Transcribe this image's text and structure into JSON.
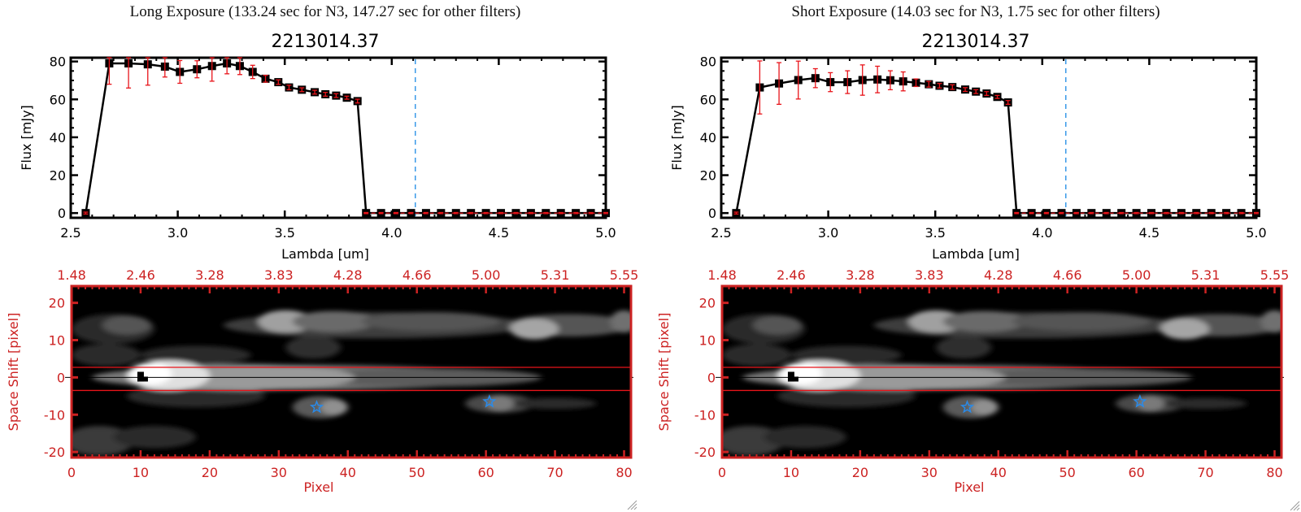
{
  "panels": [
    {
      "exposure_title": "Long Exposure (133.24 sec for N3, 147.27 sec for other filters)",
      "source_id": "2213014.37"
    },
    {
      "exposure_title": "Short Exposure (14.03 sec for N3, 1.75 sec for other filters)",
      "source_id": "2213014.37"
    }
  ],
  "colors": {
    "line": "#000000",
    "errorbar": "#e8141a",
    "marker_line_blue": "#3a9ae8",
    "image_axis": "#cc2222",
    "star": "#2a8ae8",
    "zero_line": "#e8141a"
  },
  "chart_data": [
    {
      "type": "line",
      "title": "2213014.37",
      "xlabel": "Lambda [um]",
      "ylabel": "Flux [mJy]",
      "xlim": [
        2.5,
        5.0
      ],
      "ylim": [
        -2.5,
        82
      ],
      "xticks": [
        "2.5",
        "3.0",
        "3.5",
        "4.0",
        "4.5",
        "5.0"
      ],
      "yticks": [
        "0",
        "20",
        "40",
        "60",
        "80"
      ],
      "vline_x": 4.11,
      "series": [
        {
          "name": "Long Exposure flux",
          "x": [
            2.57,
            2.68,
            2.77,
            2.86,
            2.94,
            3.01,
            3.09,
            3.16,
            3.23,
            3.29,
            3.35,
            3.41,
            3.47,
            3.52,
            3.58,
            3.64,
            3.69,
            3.74,
            3.79,
            3.84,
            3.88,
            3.95,
            4.02,
            4.09,
            4.16,
            4.23,
            4.3,
            4.37,
            4.44,
            4.51,
            4.58,
            4.65,
            4.72,
            4.79,
            4.86,
            4.93,
            5.0
          ],
          "y": [
            0,
            79.0,
            79.0,
            78.5,
            77.3,
            74.5,
            75.9,
            77.6,
            79.0,
            77.6,
            74.5,
            70.9,
            69.1,
            66.3,
            65.1,
            63.8,
            62.7,
            62.0,
            60.9,
            59.1,
            0,
            0,
            0,
            0,
            0,
            0,
            0,
            0,
            0,
            0,
            0,
            0,
            0,
            0,
            0,
            0,
            0
          ],
          "yerr_lo": [
            0.5,
            11,
            13,
            11,
            5.5,
            6,
            4.5,
            8,
            5.5,
            4.5,
            3.5,
            1.8,
            1.2,
            1.2,
            1,
            1,
            1,
            1,
            0.8,
            1,
            0.3,
            0.3,
            0.3,
            0.3,
            0.3,
            0.3,
            0.3,
            0.3,
            0.3,
            0.3,
            0.3,
            0.3,
            0.3,
            0.3,
            0.3,
            0.3,
            0.3
          ],
          "yerr_hi": [
            0.5,
            11,
            13,
            11,
            5.5,
            6,
            4.5,
            8,
            5.5,
            4.5,
            3.5,
            1.8,
            1.2,
            1.2,
            1,
            1,
            1,
            1,
            0.8,
            1,
            0.3,
            0.3,
            0.3,
            0.3,
            0.3,
            0.3,
            0.3,
            0.3,
            0.3,
            0.3,
            0.3,
            0.3,
            0.3,
            0.3,
            0.3,
            0.3,
            0.3
          ]
        }
      ]
    },
    {
      "type": "line",
      "title": "2213014.37",
      "xlabel": "Lambda [um]",
      "ylabel": "Flux [mJy]",
      "xlim": [
        2.5,
        5.0
      ],
      "ylim": [
        -2.5,
        82
      ],
      "xticks": [
        "2.5",
        "3.0",
        "3.5",
        "4.0",
        "4.5",
        "5.0"
      ],
      "yticks": [
        "0",
        "20",
        "40",
        "60",
        "80"
      ],
      "vline_x": 4.11,
      "series": [
        {
          "name": "Short Exposure flux",
          "x": [
            2.57,
            2.68,
            2.77,
            2.86,
            2.94,
            3.01,
            3.09,
            3.16,
            3.23,
            3.29,
            3.35,
            3.41,
            3.47,
            3.52,
            3.58,
            3.64,
            3.69,
            3.74,
            3.79,
            3.84,
            3.88,
            3.95,
            4.02,
            4.09,
            4.16,
            4.23,
            4.3,
            4.37,
            4.44,
            4.51,
            4.58,
            4.65,
            4.72,
            4.79,
            4.86,
            4.93,
            5.0
          ],
          "y": [
            0,
            66.3,
            68.4,
            70.2,
            71.2,
            69.1,
            69.1,
            70.2,
            70.5,
            70.1,
            69.5,
            68.8,
            68.0,
            67.2,
            66.5,
            65.2,
            64.1,
            63.1,
            61.3,
            58.4,
            0,
            0,
            0,
            0,
            0,
            0,
            0,
            0,
            0,
            0,
            0,
            0,
            0,
            0,
            0,
            0,
            0
          ],
          "yerr_lo": [
            0.5,
            14,
            11,
            10,
            5,
            5,
            6,
            8,
            7,
            5,
            5,
            2,
            1.5,
            1.2,
            1.2,
            1,
            1,
            1,
            0.8,
            1,
            0.3,
            0.3,
            0.3,
            0.3,
            0.3,
            0.3,
            0.3,
            0.3,
            0.3,
            0.3,
            0.3,
            0.3,
            0.3,
            0.3,
            0.3,
            0.3,
            0.3
          ],
          "yerr_hi": [
            0.5,
            14,
            11,
            10,
            5,
            5,
            6,
            8,
            7,
            5,
            5,
            2,
            1.5,
            1.2,
            1.2,
            1,
            1,
            1,
            0.8,
            1,
            0.3,
            0.3,
            0.3,
            0.3,
            0.3,
            0.3,
            0.3,
            0.3,
            0.3,
            0.3,
            0.3,
            0.3,
            0.3,
            0.3,
            0.3,
            0.3,
            0.3
          ]
        }
      ]
    },
    {
      "type": "heatmap",
      "title": "",
      "xlabel": "Pixel",
      "ylabel": "Space Shift [pixel]",
      "xlim": [
        0,
        81
      ],
      "ylim": [
        -21.5,
        24.5
      ],
      "xticks": [
        "0",
        "10",
        "20",
        "30",
        "40",
        "50",
        "60",
        "70",
        "80"
      ],
      "top_xticks": [
        "1.48",
        "2.46",
        "3.28",
        "3.83",
        "4.28",
        "4.66",
        "5.00",
        "5.31",
        "5.55"
      ],
      "yticks": [
        "-20",
        "-10",
        "0",
        "10",
        "20"
      ],
      "extraction_aperture": [
        -3.5,
        2.7
      ],
      "center_row": 0,
      "target_peak": {
        "x": 10,
        "y": 0
      },
      "stars": [
        {
          "x": 35.5,
          "y": -8
        },
        {
          "x": 60.5,
          "y": -6.5
        }
      ]
    },
    {
      "type": "heatmap",
      "title": "",
      "xlabel": "Pixel",
      "ylabel": "Space Shift [pixel]",
      "xlim": [
        0,
        81
      ],
      "ylim": [
        -21.5,
        24.5
      ],
      "xticks": [
        "0",
        "10",
        "20",
        "30",
        "40",
        "50",
        "60",
        "70",
        "80"
      ],
      "top_xticks": [
        "1.48",
        "2.46",
        "3.28",
        "3.83",
        "4.28",
        "4.66",
        "5.00",
        "5.31",
        "5.55"
      ],
      "yticks": [
        "-20",
        "-10",
        "0",
        "10",
        "20"
      ],
      "extraction_aperture": [
        -3.5,
        2.7
      ],
      "center_row": 0,
      "target_peak": {
        "x": 10,
        "y": 0
      },
      "stars": [
        {
          "x": 35.5,
          "y": -8
        },
        {
          "x": 60.5,
          "y": -6.5
        }
      ]
    }
  ]
}
